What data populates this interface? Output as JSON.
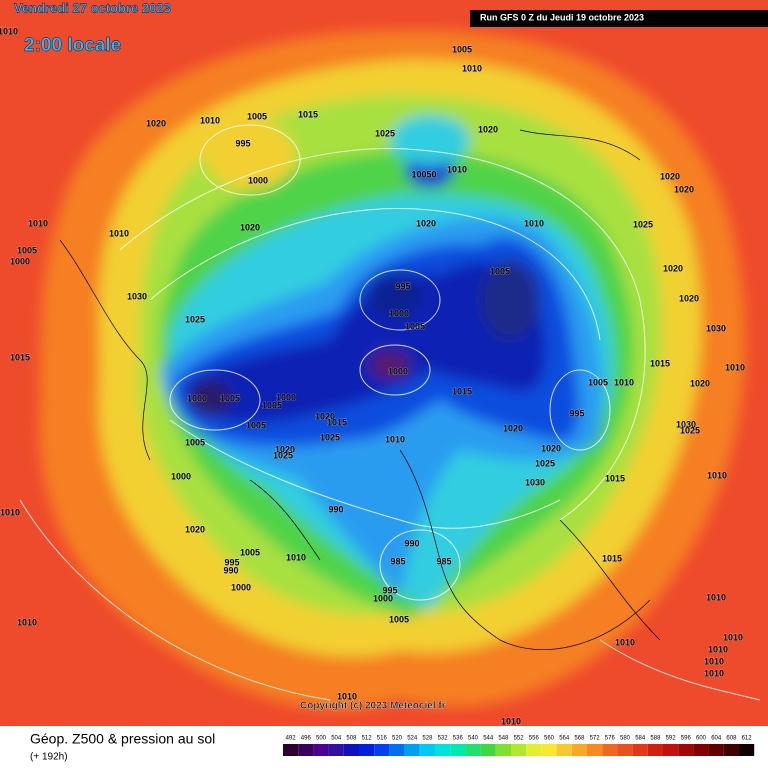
{
  "header": {
    "date": "Vendredi 27 octobre 2023",
    "time": "2:00 locale",
    "run": "Run GFS 0 Z du Jeudi 19 octobre 2023"
  },
  "copyright": "Copyright (c) 2023 Meteociel.fr",
  "legend": {
    "title": "Géop. Z500 & pression au sol",
    "lead": "(+ 192h)",
    "scale": [
      492,
      496,
      500,
      504,
      508,
      512,
      516,
      520,
      524,
      528,
      532,
      536,
      540,
      544,
      548,
      552,
      556,
      560,
      564,
      568,
      572,
      576,
      580,
      584,
      588,
      592,
      596,
      600,
      604,
      608,
      612
    ]
  },
  "isobar_labels": [
    1010,
    1005,
    1010,
    1020,
    1010,
    1005,
    1015,
    995,
    1000,
    1025,
    1020,
    10050,
    1010,
    1020,
    1010,
    1020,
    1010,
    1010,
    1005,
    1000,
    1030,
    1025,
    995,
    1000,
    1005,
    1005,
    1000,
    1015,
    1000,
    1005,
    1005,
    1000,
    1005,
    1020,
    1015,
    1025,
    1020,
    1025,
    1005,
    1000,
    1010,
    1015,
    1020,
    1020,
    1025,
    1030,
    1005,
    1010,
    995,
    1015,
    1020,
    1010,
    1030,
    1025,
    1015,
    1010,
    990,
    990,
    985,
    985,
    1015,
    1010,
    1020,
    1005,
    995,
    990,
    1000,
    1010,
    995,
    1000,
    1005,
    1010,
    1010,
    1010,
    1010,
    1010,
    1010,
    1010,
    1010,
    1010,
    1020,
    1020,
    1025,
    1020,
    1020,
    1030
  ]
}
